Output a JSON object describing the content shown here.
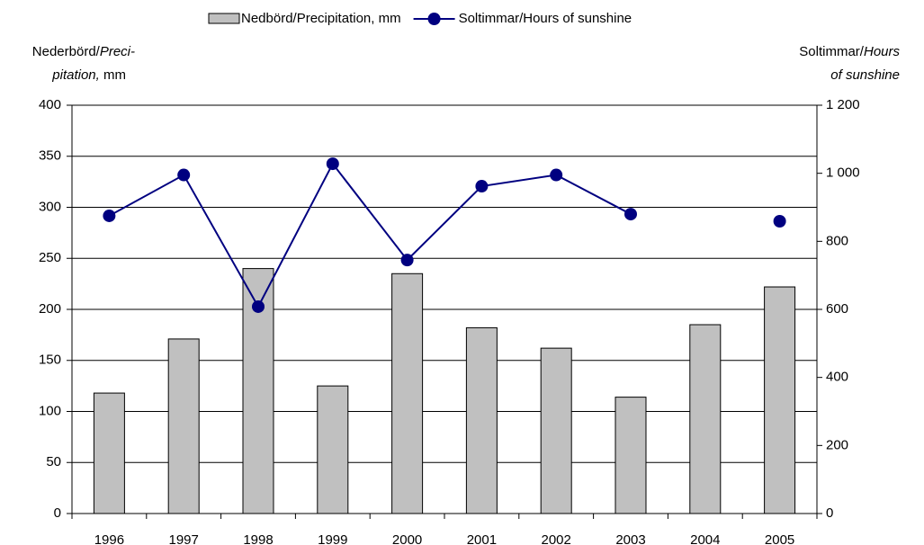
{
  "chart_data": {
    "type": "bar_line",
    "y_label": [
      "Nederbörd/",
      "Preci-",
      "pitation,",
      "mm"
    ],
    "y2_label": [
      "Soltimmar/",
      "Hours",
      "of sunshine"
    ],
    "categories": [
      "1996",
      "1997",
      "1998",
      "1999",
      "2000",
      "2001",
      "2002",
      "2003",
      "2004",
      "2005"
    ],
    "series": [
      {
        "name": "Nedbörd/Precipitation, mm",
        "color": "#c0c0c0",
        "kind": "bar",
        "values": [
          118,
          171,
          240,
          125,
          235,
          182,
          162,
          114,
          185,
          222
        ]
      },
      {
        "name": "Soltimmar/Hours of sunshine",
        "color": "#000080",
        "kind": "line",
        "axis": "y2",
        "values": [
          875,
          995,
          608,
          1028,
          745,
          962,
          995,
          880,
          null,
          859
        ]
      }
    ],
    "ylim": [
      0,
      400
    ],
    "yticks": [
      0,
      50,
      100,
      150,
      200,
      250,
      300,
      350,
      400
    ],
    "y2lim": [
      0,
      1200
    ],
    "y2ticks": [
      0,
      200,
      400,
      600,
      800,
      {
        "value": 1000,
        "label": "1 000"
      },
      {
        "value": 1200,
        "label": "1 200"
      }
    ],
    "grid": true,
    "legend": "top"
  }
}
